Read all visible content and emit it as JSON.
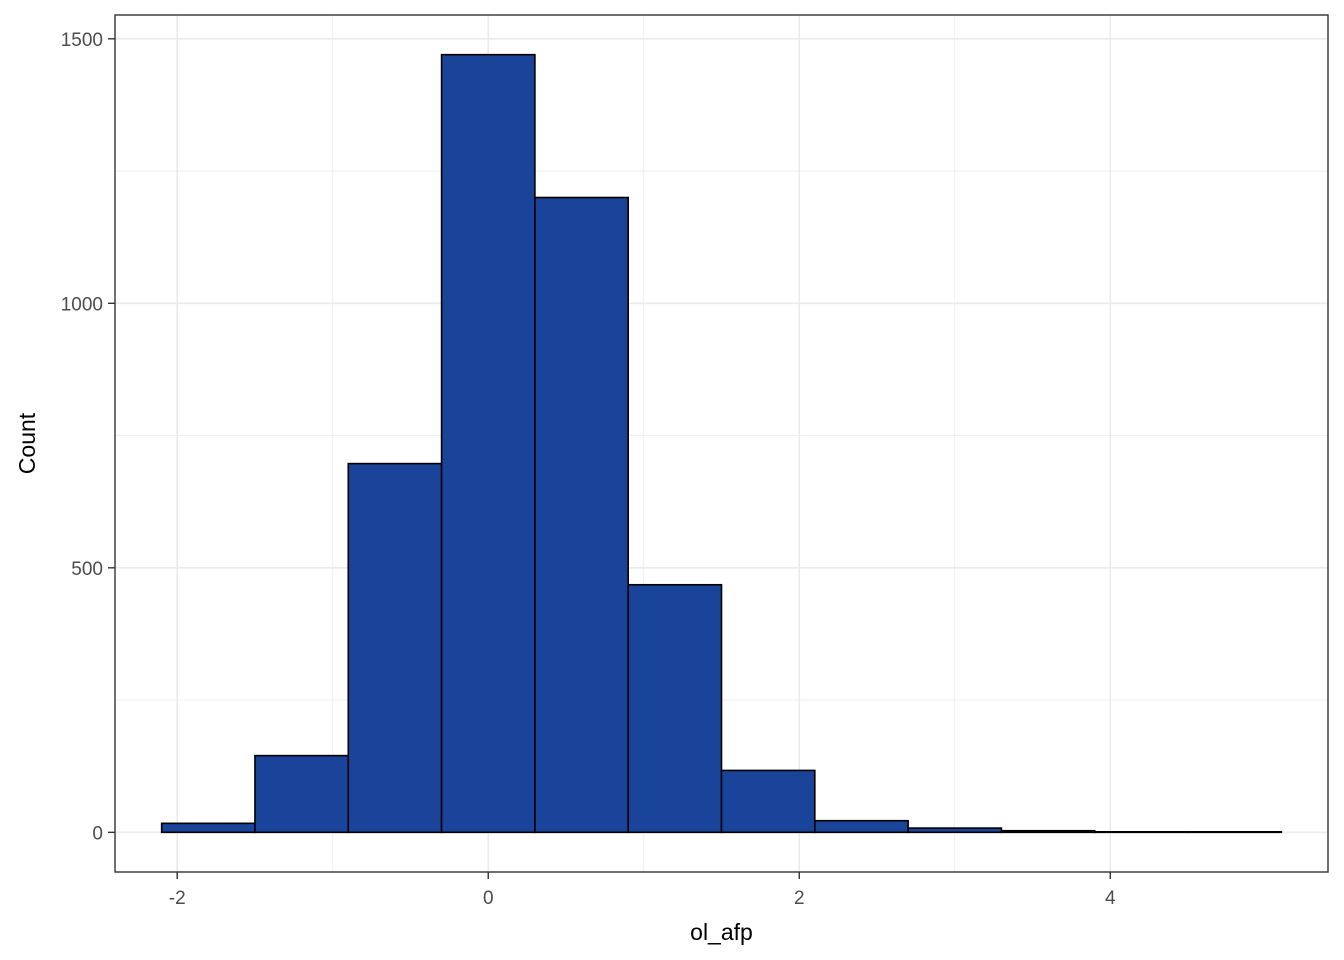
{
  "chart_data": {
    "type": "bar",
    "title": "",
    "xlabel": "ol_afp",
    "ylabel": "Count",
    "xlim": [
      -2.4,
      5.4
    ],
    "ylim": [
      -75,
      1545
    ],
    "x_ticks": [
      -2,
      0,
      2,
      4
    ],
    "x_tick_labels": [
      "-2",
      "0",
      "2",
      "4"
    ],
    "y_ticks": [
      0,
      500,
      1000,
      1500
    ],
    "y_tick_labels": [
      "0",
      "500",
      "1000",
      "1500"
    ],
    "grid": true,
    "legend": "none",
    "bins": [
      {
        "x0": -2.1,
        "x1": -1.5,
        "count": 17
      },
      {
        "x0": -1.5,
        "x1": -0.9,
        "count": 145
      },
      {
        "x0": -0.9,
        "x1": -0.3,
        "count": 697
      },
      {
        "x0": -0.3,
        "x1": 0.3,
        "count": 1470
      },
      {
        "x0": 0.3,
        "x1": 0.9,
        "count": 1200
      },
      {
        "x0": 0.9,
        "x1": 1.5,
        "count": 468
      },
      {
        "x0": 1.5,
        "x1": 2.1,
        "count": 117
      },
      {
        "x0": 2.1,
        "x1": 2.7,
        "count": 22
      },
      {
        "x0": 2.7,
        "x1": 3.3,
        "count": 8
      },
      {
        "x0": 3.3,
        "x1": 3.9,
        "count": 3
      },
      {
        "x0": 3.9,
        "x1": 4.5,
        "count": 1
      },
      {
        "x0": 4.5,
        "x1": 5.1,
        "count": 1
      }
    ]
  },
  "colors": {
    "bar_fill": "#1a4499",
    "bar_stroke": "#000000",
    "grid": "#ebebeb",
    "panel_border": "#333333"
  }
}
